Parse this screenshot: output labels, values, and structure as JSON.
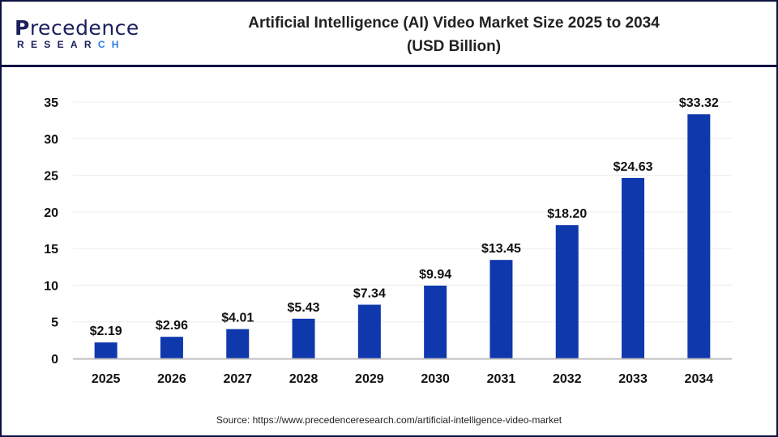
{
  "logo": {
    "text_top": "Precedence",
    "text_bottom": "RESEARCH"
  },
  "title_line1": "Artificial Intelligence (AI) Video Market Size 2025 to 2034",
  "title_line2": "(USD Billion)",
  "source": "Source: https://www.precedenceresearch.com/artificial-intelligence-video-market",
  "colors": {
    "bar": "#0f38ad",
    "frame": "#0b1240",
    "grid": "#ececec",
    "axis": "#bdbdbd"
  },
  "chart_data": {
    "type": "bar",
    "title": "Artificial Intelligence (AI) Video Market Size 2025 to 2034 (USD Billion)",
    "categories": [
      "2025",
      "2026",
      "2027",
      "2028",
      "2029",
      "2030",
      "2031",
      "2032",
      "2033",
      "2034"
    ],
    "values": [
      2.19,
      2.96,
      4.01,
      5.43,
      7.34,
      9.94,
      13.45,
      18.2,
      24.63,
      33.32
    ],
    "data_labels": [
      "$2.19",
      "$2.96",
      "$4.01",
      "$5.43",
      "$7.34",
      "$9.94",
      "$13.45",
      "$18.20",
      "$24.63",
      "$33.32"
    ],
    "yticks": [
      0,
      5,
      10,
      15,
      20,
      25,
      30,
      35
    ],
    "ylim": [
      0,
      35
    ],
    "grid": true,
    "xlabel": "",
    "ylabel": ""
  }
}
